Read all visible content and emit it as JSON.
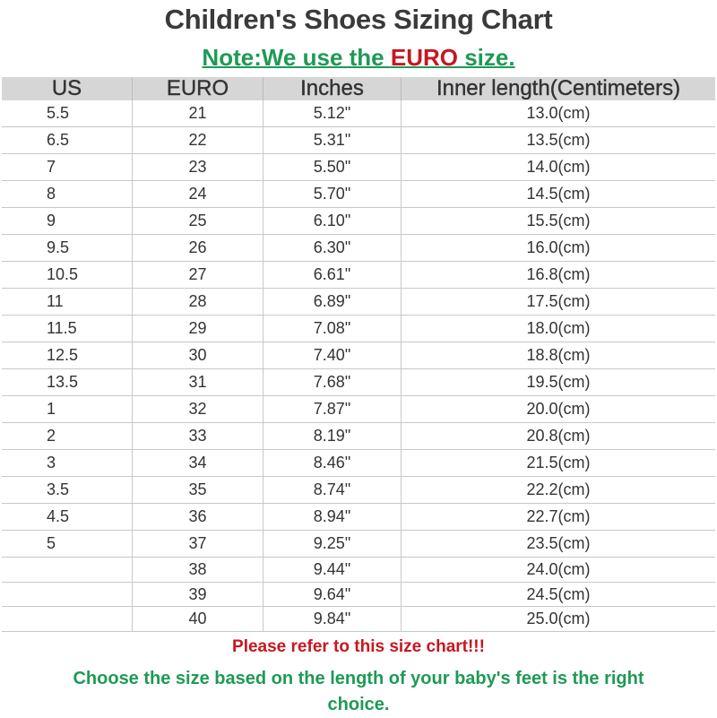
{
  "title": "Children's Shoes Sizing Chart",
  "note": {
    "prefix": "Note:We use the ",
    "highlight": "EURO",
    "suffix": " size."
  },
  "colors": {
    "green": "#1e9a55",
    "red": "#c8161e",
    "header_bg": "#d6d6d6"
  },
  "table": {
    "headers": [
      "US",
      "EURO",
      "Inches",
      "Inner length(Centimeters)"
    ],
    "rows": [
      [
        "5.5",
        "21",
        "5.12\"",
        "13.0(cm)"
      ],
      [
        "6.5",
        "22",
        "5.31\"",
        "13.5(cm)"
      ],
      [
        "7",
        "23",
        "5.50\"",
        "14.0(cm)"
      ],
      [
        "8",
        "24",
        "5.70\"",
        "14.5(cm)"
      ],
      [
        "9",
        "25",
        "6.10\"",
        "15.5(cm)"
      ],
      [
        "9.5",
        "26",
        "6.30\"",
        "16.0(cm)"
      ],
      [
        "10.5",
        "27",
        "6.61\"",
        "16.8(cm)"
      ],
      [
        "11",
        "28",
        "6.89\"",
        "17.5(cm)"
      ],
      [
        "11.5",
        "29",
        "7.08\"",
        "18.0(cm)"
      ],
      [
        "12.5",
        "30",
        "7.40\"",
        "18.8(cm)"
      ],
      [
        "13.5",
        "31",
        "7.68\"",
        "19.5(cm)"
      ],
      [
        "1",
        "32",
        "7.87\"",
        "20.0(cm)"
      ],
      [
        "2",
        "33",
        "8.19\"",
        "20.8(cm)"
      ],
      [
        "3",
        "34",
        "8.46\"",
        "21.5(cm)"
      ],
      [
        "3.5",
        "35",
        "8.74\"",
        "22.2(cm)"
      ],
      [
        "4.5",
        "36",
        "8.94\"",
        "22.7(cm)"
      ],
      [
        "5",
        "37",
        "9.25\"",
        "23.5(cm)"
      ],
      [
        "",
        "38",
        "9.44\"",
        "24.0(cm)"
      ],
      [
        "",
        "39",
        "9.64\"",
        "24.5(cm)"
      ],
      [
        "",
        "40",
        "9.84\"",
        "25.0(cm)"
      ]
    ]
  },
  "footer": {
    "refer": "Please refer to this size chart!!!",
    "choose": "Choose the size based on the length of your baby's feet is the right choice."
  }
}
